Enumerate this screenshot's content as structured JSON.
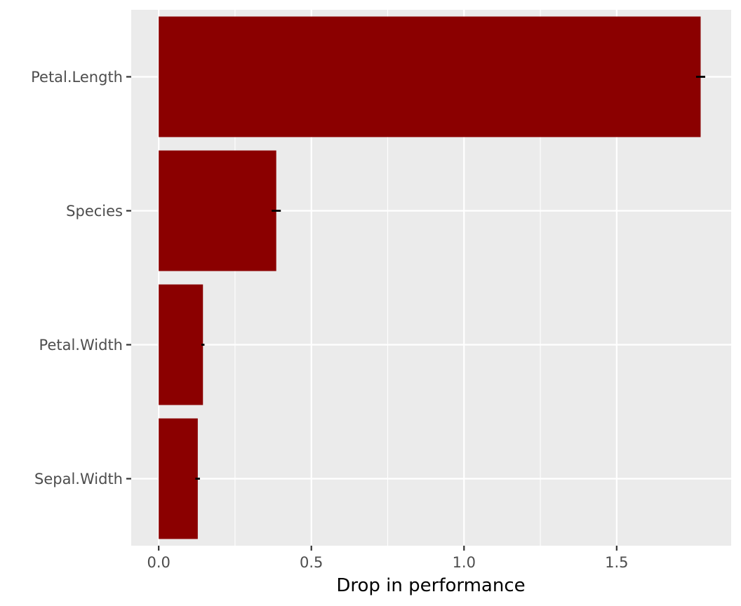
{
  "chart_data": {
    "type": "bar",
    "orientation": "horizontal",
    "title": "",
    "xlabel": "Drop in performance",
    "ylabel": "",
    "categories": [
      "Petal.Length",
      "Species",
      "Petal.Width",
      "Sepal.Width"
    ],
    "values": [
      1.775,
      0.385,
      0.145,
      0.128
    ],
    "error_bars": [
      {
        "low": 1.76,
        "high": 1.79
      },
      {
        "low": 0.37,
        "high": 0.4
      },
      {
        "low": 0.14,
        "high": 0.15
      },
      {
        "low": 0.12,
        "high": 0.135
      }
    ],
    "xlim": [
      -0.09,
      1.875
    ],
    "xticks": [
      0.0,
      0.5,
      1.0,
      1.5
    ],
    "xtick_labels": [
      "0.0",
      "0.5",
      "1.0",
      "1.5"
    ],
    "grid": true,
    "legend": "none",
    "colors": {
      "bar": "#8b0000",
      "panel_background": "#ebebeb",
      "grid_major": "#ffffff",
      "error_bar": "#000000"
    }
  }
}
